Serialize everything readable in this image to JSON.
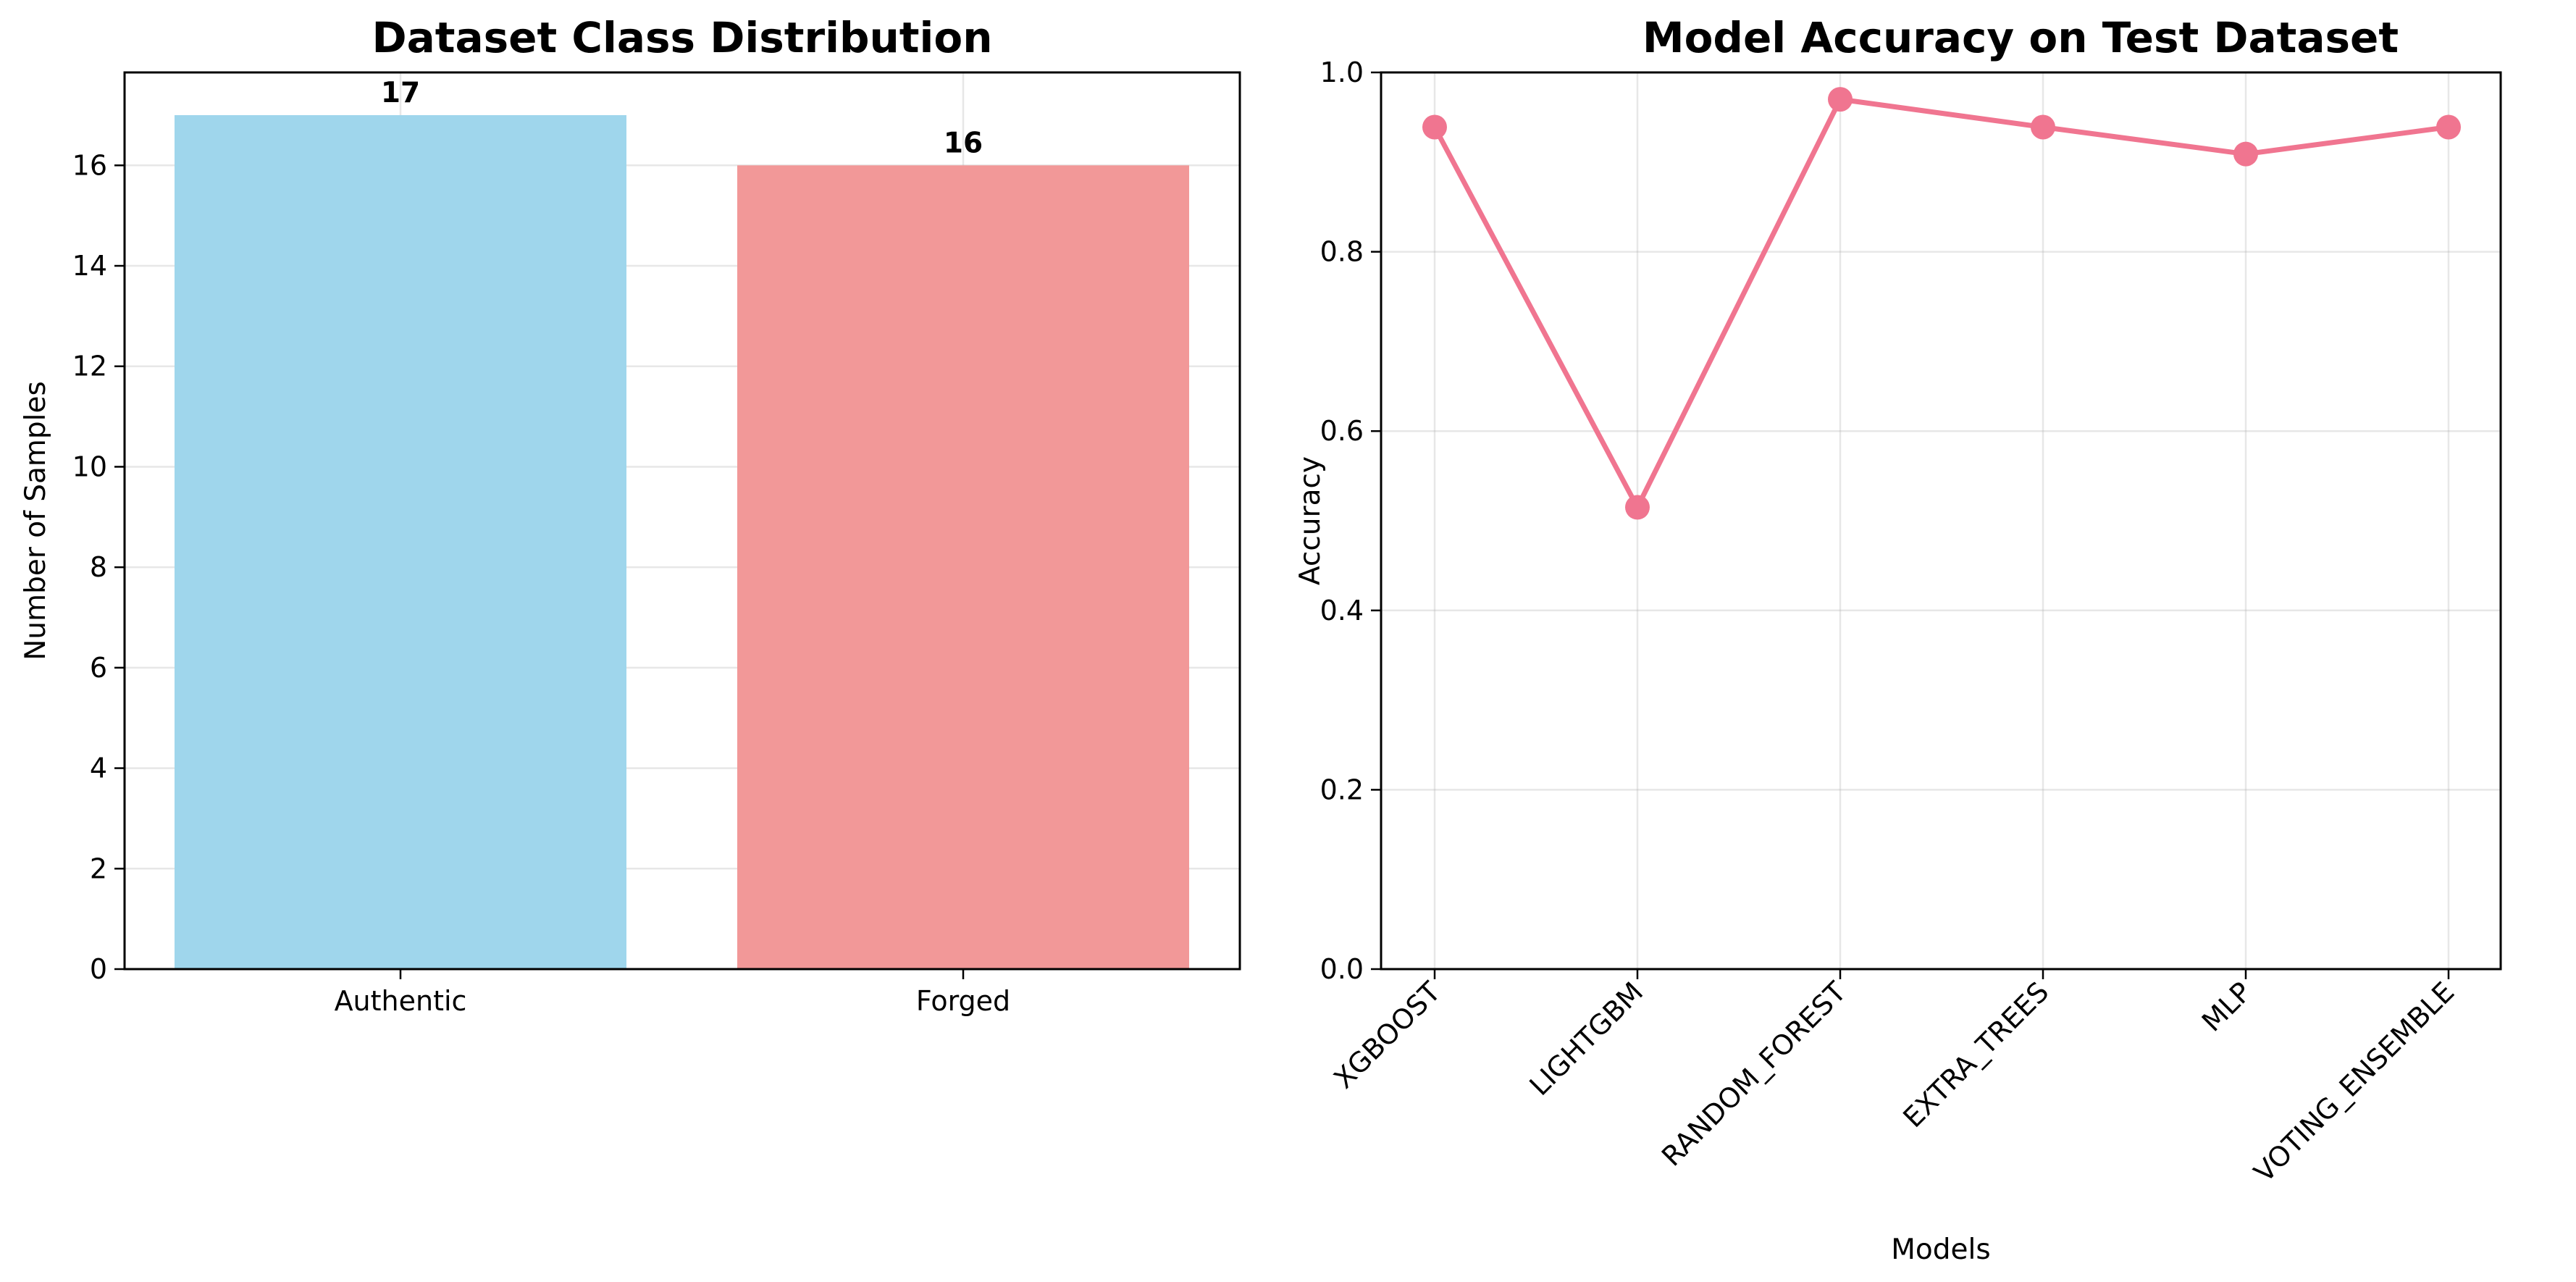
{
  "chart_data": [
    {
      "type": "bar",
      "title": "Dataset Class Distribution",
      "xlabel": "",
      "ylabel": "Number of Samples",
      "categories": [
        "Authentic",
        "Forged"
      ],
      "values": [
        17,
        16
      ],
      "data_labels": [
        "17",
        "16"
      ],
      "colors": [
        "#9fd6ec",
        "#f29898"
      ],
      "ylim": [
        0,
        17.85
      ],
      "yticks": [
        0,
        2,
        4,
        6,
        8,
        10,
        12,
        14,
        16
      ],
      "grid": true,
      "legend": "none"
    },
    {
      "type": "line",
      "title": "Model Accuracy on Test Dataset",
      "xlabel": "Models",
      "ylabel": "Accuracy",
      "categories": [
        "XGBOOST",
        "LIGHTGBM",
        "RANDOM_FOREST",
        "EXTRA_TREES",
        "MLP",
        "VOTING_ENSEMBLE"
      ],
      "values": [
        0.939,
        0.515,
        0.97,
        0.939,
        0.909,
        0.939
      ],
      "color": "#f07590",
      "ylim": [
        0,
        1.0
      ],
      "yticks": [
        0.0,
        0.2,
        0.4,
        0.6,
        0.8,
        1.0
      ],
      "ytick_labels": [
        "0.0",
        "0.2",
        "0.4",
        "0.6",
        "0.8",
        "1.0"
      ],
      "xtick_rotation": 45,
      "grid": true,
      "legend": "none"
    }
  ]
}
